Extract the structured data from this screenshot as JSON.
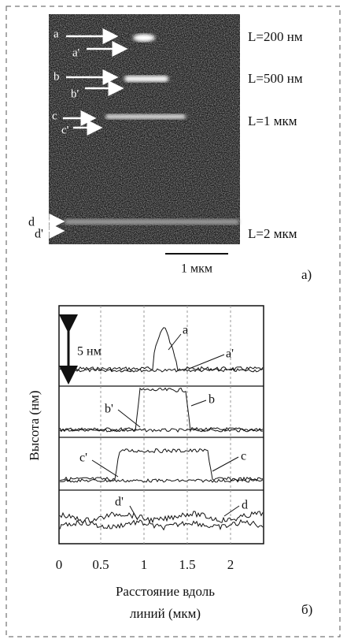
{
  "panel_a": {
    "image_labels": [
      "a",
      "a'",
      "b",
      "b'",
      "c",
      "c'",
      "d",
      "d'"
    ],
    "lengths": [
      "L=200 нм",
      "L=500 нм",
      "L=1 мкм",
      "L=2 мкм"
    ],
    "scale_bar": "1 мкм",
    "panel_label": "а)"
  },
  "panel_b": {
    "scale": "5 нм",
    "y_label": "Высота (нм)",
    "x_ticks": [
      "0",
      "0.5",
      "1",
      "1.5",
      "2"
    ],
    "x_label": [
      "Расстояние вдоль",
      "линий (мкм)"
    ],
    "curve_labels": [
      "a",
      "a'",
      "b",
      "b'",
      "c",
      "c'",
      "d",
      "d'"
    ],
    "panel_label": "б)"
  }
}
